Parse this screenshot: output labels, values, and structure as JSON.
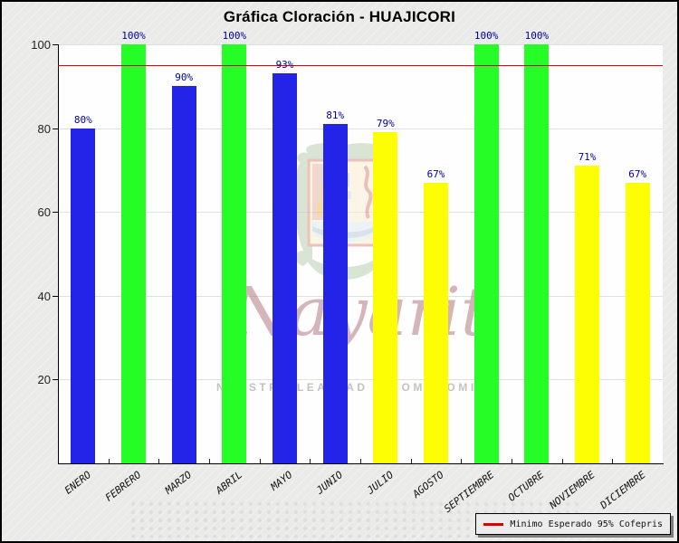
{
  "title": "Gráfica Cloración - HUAJICORI",
  "chart_data": {
    "type": "bar",
    "title": "Gráfica Cloración - HUAJICORI",
    "categories": [
      "ENERO",
      "FEBRERO",
      "MARZO",
      "ABRIL",
      "MAYO",
      "JUNIO",
      "JULIO",
      "AGOSTO",
      "SEPTIEMBRE",
      "OCTUBRE",
      "NOVIEMBRE",
      "DICIEMBRE"
    ],
    "values": [
      80,
      100,
      90,
      100,
      93,
      81,
      79,
      67,
      100,
      100,
      71,
      67
    ],
    "value_labels": [
      "80%",
      "100%",
      "90%",
      "100%",
      "93%",
      "81%",
      "79%",
      "67%",
      "100%",
      "100%",
      "71%",
      "67%"
    ],
    "bar_colors": [
      "blue",
      "green",
      "blue",
      "green",
      "blue",
      "blue",
      "yellow",
      "yellow",
      "green",
      "green",
      "yellow",
      "yellow"
    ],
    "palette": {
      "blue": "#2424e8",
      "green": "#26fc26",
      "yellow": "#fdfd04"
    },
    "xlabel": "",
    "ylabel": "",
    "ylim": [
      0,
      100
    ],
    "yticks": [
      20,
      40,
      60,
      80,
      100
    ],
    "grid": true,
    "legend_position": "bottom-right",
    "reference_line": {
      "value": 95,
      "label": "Minimo Esperado 95% Cofepris",
      "color": "#dd0000"
    }
  },
  "legend": {
    "label": "Minimo Esperado 95% Cofepris",
    "line_color": "#dd0000"
  },
  "watermark": {
    "script": "Nayarit",
    "slogan": "NUESTRA LEALTAD Y COMPROMISO"
  }
}
